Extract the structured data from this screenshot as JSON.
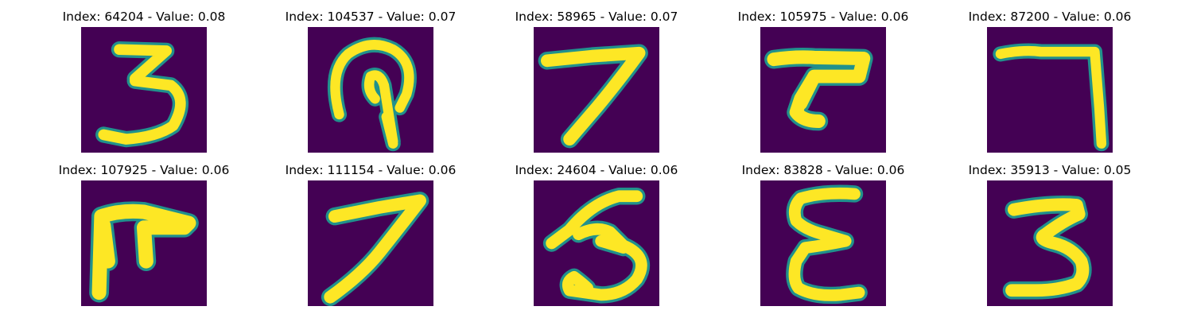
{
  "colors": {
    "background": "#440154",
    "mid": "#21918c",
    "stroke": "#fde725",
    "text": "#000000"
  },
  "tiles": [
    {
      "title": "Index: 64204 - Value: 0.08",
      "digit": "3"
    },
    {
      "title": "Index: 104537 - Value: 0.07",
      "digit": "hook"
    },
    {
      "title": "Index: 58965 - Value: 0.07",
      "digit": "7"
    },
    {
      "title": "Index: 105975 - Value: 0.06",
      "digit": "T"
    },
    {
      "title": "Index: 87200 - Value: 0.06",
      "digit": "7-angle"
    },
    {
      "title": "Index: 107925 - Value: 0.06",
      "digit": "F-like"
    },
    {
      "title": "Index: 111154 - Value: 0.06",
      "digit": "7"
    },
    {
      "title": "Index: 24604 - Value: 0.06",
      "digit": "3"
    },
    {
      "title": "Index: 83828 - Value: 0.06",
      "digit": "E"
    },
    {
      "title": "Index: 35913 - Value: 0.05",
      "digit": "3"
    }
  ]
}
